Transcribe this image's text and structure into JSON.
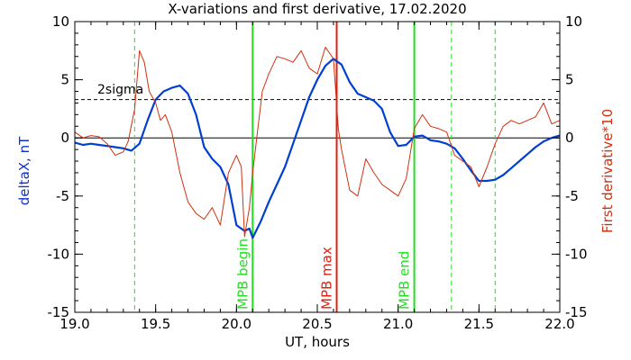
{
  "chart_data": {
    "type": "line",
    "title": "X-variations and first derivative, 17.02.2020",
    "xlabel": "UT, hours",
    "ylabel_left": "deltaX, nT",
    "ylabel_right": "First derivative*10",
    "xlim": [
      19.0,
      22.0
    ],
    "ylim": [
      -15,
      10
    ],
    "xticks": [
      "19.0",
      "19.5",
      "20.0",
      "20.5",
      "21.0",
      "21.5",
      "22.0"
    ],
    "yticks_left": [
      "-15",
      "-10",
      "-5",
      "0",
      "5",
      "10"
    ],
    "yticks_right": [
      "-15",
      "-10",
      "-5",
      "0",
      "5",
      "10"
    ],
    "grid": false,
    "sigma_level": 3.3,
    "sigma_label": "2sigma",
    "colors": {
      "deltaX": "#0040d0",
      "derivative": "#d03010",
      "mpb_begin_end": "#20e020",
      "mpb_max": "#e02010",
      "dashed_markers": "#20e020",
      "axes": "#000000"
    },
    "series": [
      {
        "name": "deltaX, nT",
        "axis": "left",
        "x": [
          19.0,
          19.05,
          19.1,
          19.15,
          19.2,
          19.25,
          19.3,
          19.35,
          19.4,
          19.45,
          19.5,
          19.55,
          19.6,
          19.65,
          19.7,
          19.75,
          19.8,
          19.85,
          19.9,
          19.95,
          20.0,
          20.05,
          20.08,
          20.1,
          20.15,
          20.2,
          20.25,
          20.3,
          20.35,
          20.4,
          20.45,
          20.5,
          20.55,
          20.6,
          20.65,
          20.7,
          20.75,
          20.8,
          20.85,
          20.9,
          20.95,
          21.0,
          21.05,
          21.1,
          21.15,
          21.2,
          21.25,
          21.3,
          21.35,
          21.4,
          21.45,
          21.5,
          21.55,
          21.6,
          21.65,
          21.7,
          21.75,
          21.8,
          21.85,
          21.9,
          21.95,
          22.0
        ],
        "values": [
          -0.4,
          -0.6,
          -0.5,
          -0.6,
          -0.7,
          -0.8,
          -0.9,
          -1.1,
          -0.5,
          1.5,
          3.3,
          4.0,
          4.3,
          4.5,
          3.8,
          2.0,
          -0.8,
          -1.8,
          -2.5,
          -4.0,
          -7.5,
          -8.0,
          -7.8,
          -8.6,
          -7.2,
          -5.5,
          -4.0,
          -2.5,
          -0.5,
          1.5,
          3.5,
          5.0,
          6.2,
          6.8,
          6.3,
          4.8,
          3.8,
          3.5,
          3.2,
          2.5,
          0.5,
          -0.7,
          -0.6,
          0.1,
          0.2,
          -0.2,
          -0.3,
          -0.5,
          -0.9,
          -1.8,
          -2.8,
          -3.7,
          -3.7,
          -3.6,
          -3.2,
          -2.6,
          -2.0,
          -1.4,
          -0.8,
          -0.3,
          0.0,
          0.2
        ]
      },
      {
        "name": "First derivative*10",
        "axis": "right",
        "x": [
          19.0,
          19.05,
          19.1,
          19.15,
          19.2,
          19.25,
          19.3,
          19.33,
          19.37,
          19.4,
          19.43,
          19.46,
          19.5,
          19.53,
          19.56,
          19.6,
          19.65,
          19.7,
          19.75,
          19.8,
          19.85,
          19.9,
          19.95,
          20.0,
          20.03,
          20.05,
          20.08,
          20.1,
          20.13,
          20.16,
          20.2,
          20.25,
          20.3,
          20.35,
          20.4,
          20.45,
          20.5,
          20.55,
          20.6,
          20.63,
          20.65,
          20.7,
          20.75,
          20.8,
          20.85,
          20.9,
          20.95,
          21.0,
          21.05,
          21.1,
          21.15,
          21.2,
          21.25,
          21.3,
          21.35,
          21.4,
          21.45,
          21.5,
          21.55,
          21.6,
          21.65,
          21.7,
          21.75,
          21.8,
          21.85,
          21.9,
          21.95,
          22.0
        ],
        "values": [
          0.5,
          0.0,
          0.2,
          0.1,
          -0.5,
          -1.5,
          -1.2,
          -0.3,
          2.5,
          7.5,
          6.5,
          4.0,
          3.0,
          1.5,
          2.0,
          0.5,
          -3.0,
          -5.5,
          -6.5,
          -7.0,
          -6.0,
          -7.5,
          -3.0,
          -1.5,
          -2.5,
          -8.5,
          -6.0,
          -3.0,
          0.5,
          4.0,
          5.5,
          7.0,
          6.8,
          6.5,
          7.5,
          6.0,
          5.5,
          7.8,
          6.8,
          0.8,
          -1.0,
          -4.5,
          -5.0,
          -1.8,
          -3.0,
          -4.0,
          -4.5,
          -5.0,
          -3.5,
          0.8,
          2.0,
          1.0,
          0.8,
          0.5,
          -1.5,
          -2.0,
          -2.5,
          -4.2,
          -2.5,
          -0.5,
          1.0,
          1.5,
          1.2,
          1.5,
          1.8,
          3.0,
          1.2,
          1.5
        ]
      }
    ],
    "vertical_lines": [
      {
        "x": 19.37,
        "style": "dashed",
        "color": "#20e020",
        "label": ""
      },
      {
        "x": 20.1,
        "style": "solid",
        "color": "#20e020",
        "label": "MPB begin"
      },
      {
        "x": 20.62,
        "style": "solid",
        "color": "#e02010",
        "label": "MPB max"
      },
      {
        "x": 21.1,
        "style": "solid",
        "color": "#20e020",
        "label": "MPB end"
      },
      {
        "x": 21.33,
        "style": "dashed",
        "color": "#20e020",
        "label": ""
      },
      {
        "x": 21.6,
        "style": "dashed",
        "color": "#20e020",
        "label": ""
      }
    ]
  }
}
